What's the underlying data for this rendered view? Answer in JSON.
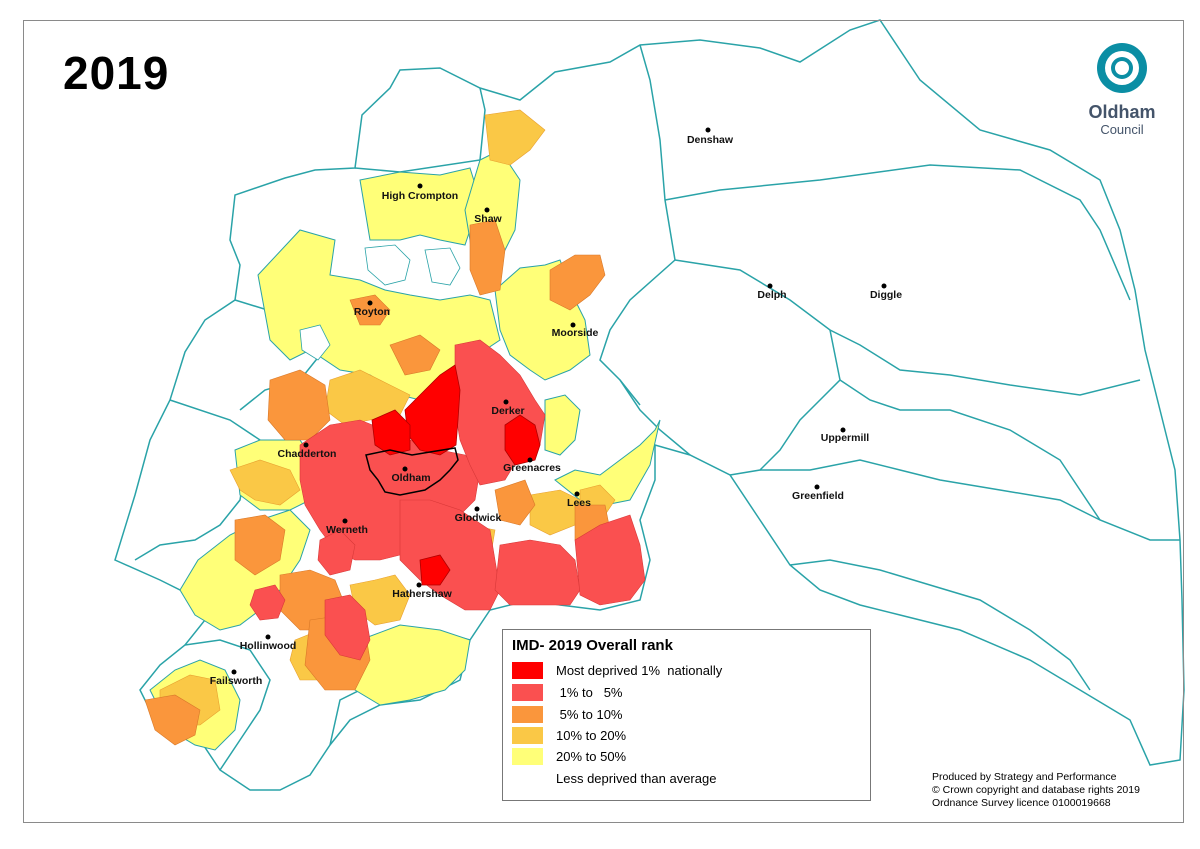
{
  "title": "2019",
  "logo": {
    "name": "Oldham",
    "subtitle": "Council",
    "color": "#0b8ea4"
  },
  "places": [
    {
      "name": "Denshaw"
    },
    {
      "name": "High Crompton"
    },
    {
      "name": "Shaw"
    },
    {
      "name": "Delph"
    },
    {
      "name": "Diggle"
    },
    {
      "name": "Royton"
    },
    {
      "name": "Moorside"
    },
    {
      "name": "Derker"
    },
    {
      "name": "Uppermill"
    },
    {
      "name": "Chadderton"
    },
    {
      "name": "Greenacres"
    },
    {
      "name": "Oldham"
    },
    {
      "name": "Greenfield"
    },
    {
      "name": "Lees"
    },
    {
      "name": "Glodwick"
    },
    {
      "name": "Werneth"
    },
    {
      "name": "Hathershaw"
    },
    {
      "name": "Hollinwood"
    },
    {
      "name": "Failsworth"
    }
  ],
  "legend": {
    "title": "IMD- 2019 Overall rank",
    "items": [
      {
        "label": "Most deprived 1%  nationally",
        "color": "#ff0000"
      },
      {
        "label": " 1% to   5%",
        "color": "#fa5050"
      },
      {
        "label": " 5% to 10%",
        "color": "#fa963c"
      },
      {
        "label": "10% to 20%",
        "color": "#fac846"
      },
      {
        "label": "20% to 50%",
        "color": "#ffff78"
      },
      {
        "label": "Less deprived than average",
        "color": "#ffffff"
      }
    ]
  },
  "credits": {
    "line1": "Produced by Strategy and Performance",
    "line2": "© Crown copyright and database rights 2019",
    "line3": "Ordnance Survey licence 0100019668"
  },
  "boundary_color": "#2aa3a8"
}
